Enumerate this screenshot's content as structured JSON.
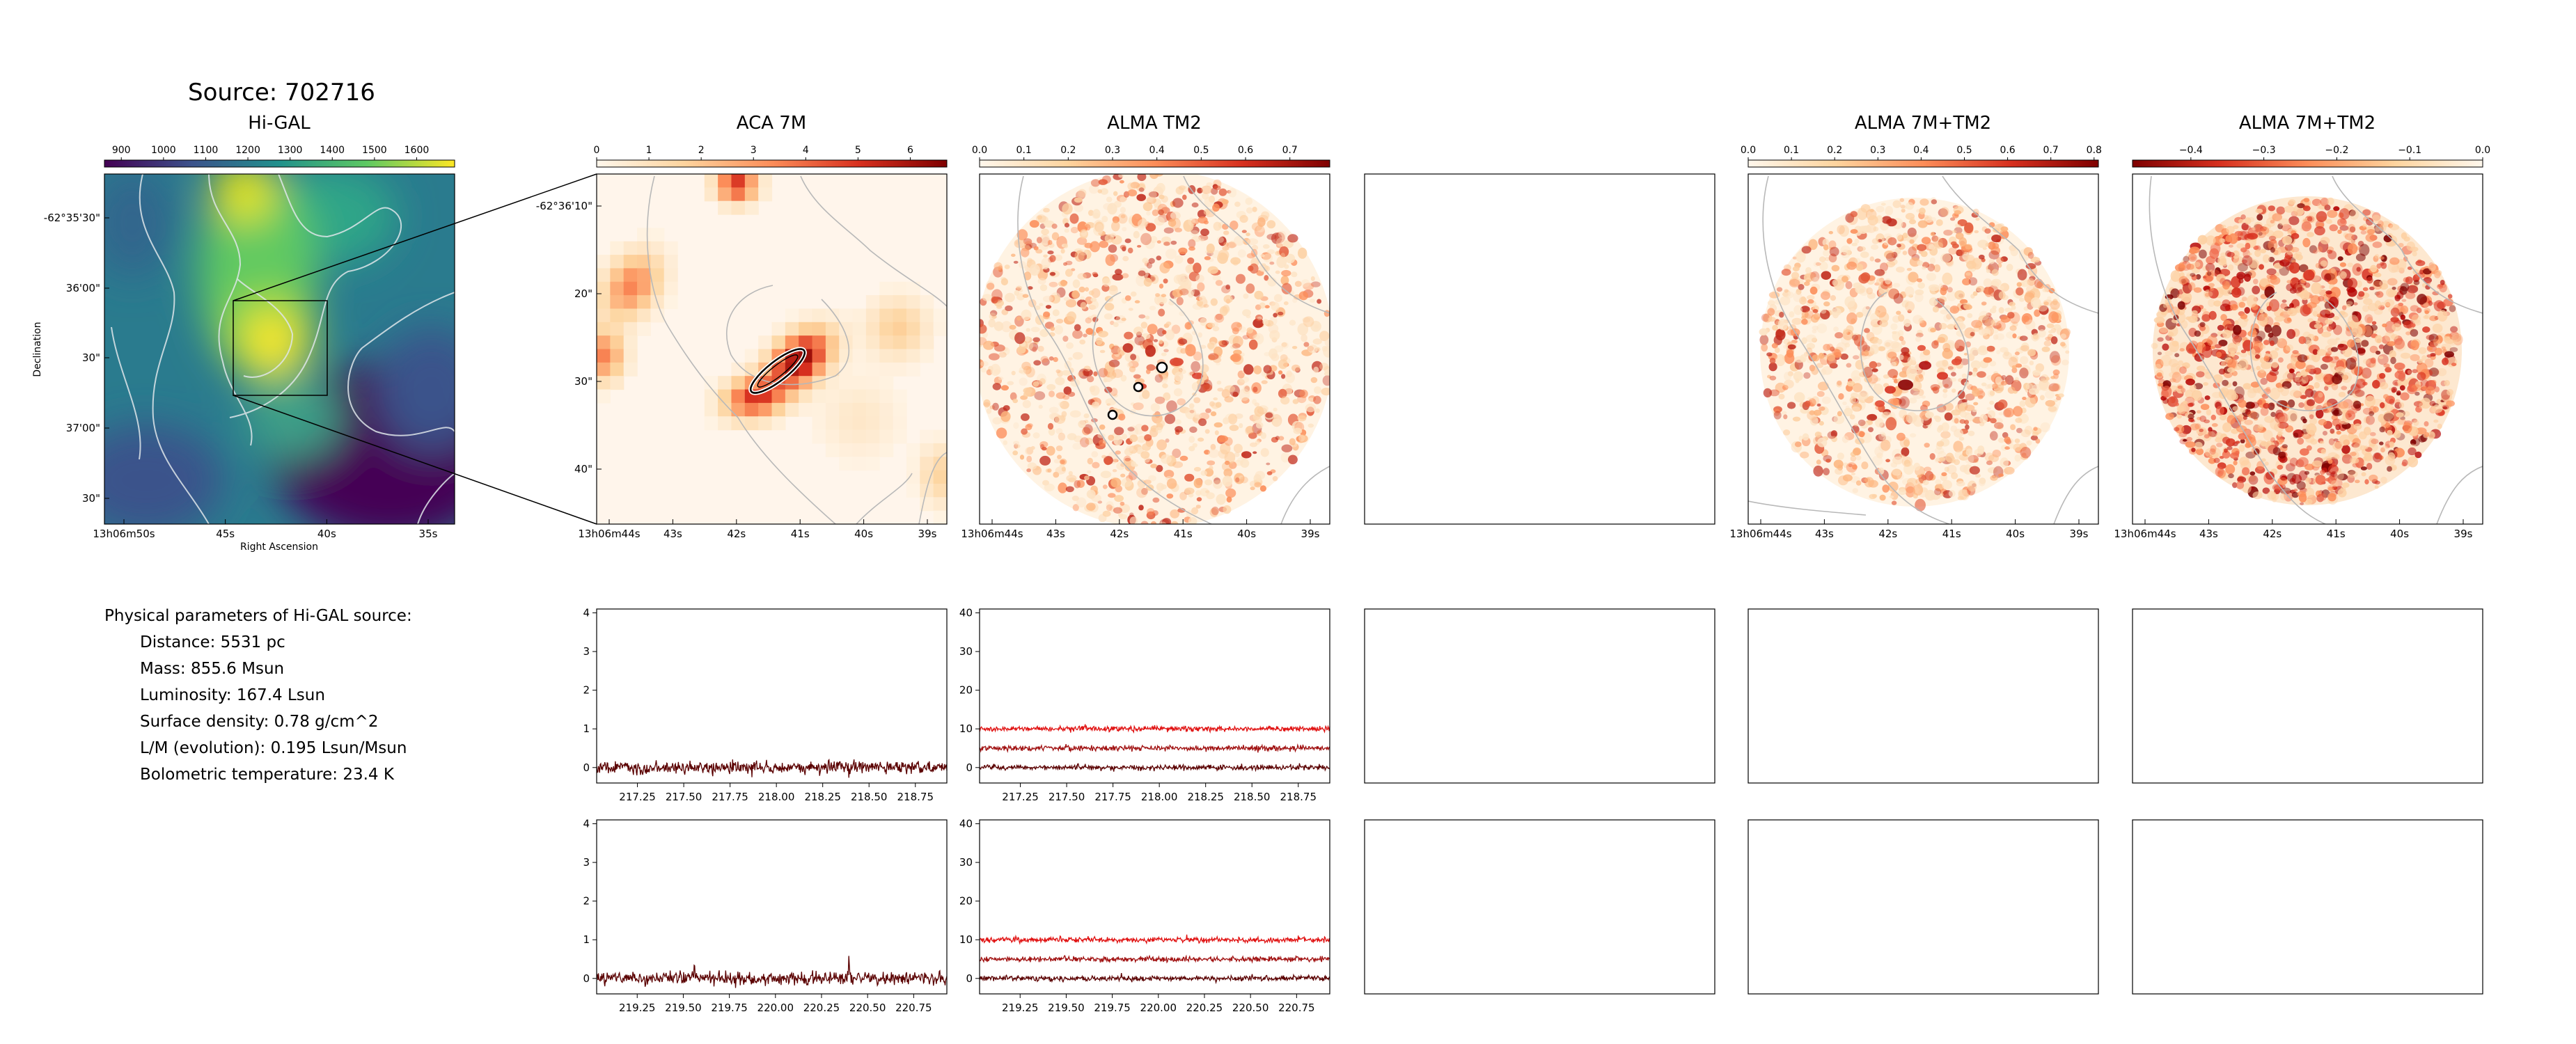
{
  "source_title": "Source: 702716",
  "params": {
    "title": "Physical parameters of Hi-GAL source:",
    "lines": [
      "Distance: 5531 pc",
      "Mass: 855.6 Msun",
      "Luminosity: 167.4 Lsun",
      "Surface density: 0.78 g/cm^2",
      "L/M (evolution): 0.195 Lsun/Msun",
      "Bolometric temperature: 23.4 K"
    ]
  },
  "colors": {
    "viridis": [
      "#440154",
      "#3b528b",
      "#21918c",
      "#5ec962",
      "#fde725"
    ],
    "orrd": [
      "#fff7ec",
      "#fdd49e",
      "#fc8d59",
      "#d7301f",
      "#7f0000"
    ],
    "orrd_rev": [
      "#7f0000",
      "#d7301f",
      "#fc8d59",
      "#fdd49e",
      "#fff7ec"
    ],
    "spec_dark": "#5a0000",
    "spec_mid": "#a01010",
    "spec_light": "#e01010"
  },
  "chart_data": [
    {
      "type": "heatmap",
      "title": "Hi-GAL",
      "colorbar": {
        "ticks": [
          "900",
          "1000",
          "1100",
          "1200",
          "1300",
          "1400",
          "1500",
          "1600"
        ],
        "range": [
          860,
          1690
        ],
        "cmap": "viridis"
      },
      "ylabel": "Declination",
      "xlabel": "Right Ascension",
      "xticks": [
        "13h06m50s",
        "45s",
        "40s",
        "35s"
      ],
      "yticks": [
        "-62°35'30\"",
        "36'00\"",
        "30\"",
        "37'00\"",
        "30\""
      ],
      "zoom_box": true
    },
    {
      "type": "heatmap",
      "title": "ACA 7M",
      "colorbar": {
        "ticks": [
          "0",
          "1",
          "2",
          "3",
          "4",
          "5",
          "6"
        ],
        "range": [
          0,
          6.7
        ],
        "cmap": "orrd"
      },
      "xticks": [
        "13h06m44s",
        "43s",
        "42s",
        "41s",
        "40s",
        "39s"
      ],
      "yticks": [
        "-62°36'10\"",
        "20\"",
        "30\"",
        "40\""
      ]
    },
    {
      "type": "heatmap",
      "title": "ALMA TM2",
      "colorbar": {
        "ticks": [
          "0.0",
          "0.1",
          "0.2",
          "0.3",
          "0.4",
          "0.5",
          "0.6",
          "0.7"
        ],
        "range": [
          0,
          0.79
        ],
        "cmap": "orrd"
      },
      "xticks": [
        "13h06m44s",
        "43s",
        "42s",
        "41s",
        "40s",
        "39s"
      ]
    },
    {
      "type": "heatmap",
      "title": "ALMA 7M+TM2",
      "colorbar": {
        "ticks": [
          "0.0",
          "0.1",
          "0.2",
          "0.3",
          "0.4",
          "0.5",
          "0.6",
          "0.7",
          "0.8"
        ],
        "range": [
          0,
          0.81
        ],
        "cmap": "orrd"
      },
      "xticks": [
        "13h06m44s",
        "43s",
        "42s",
        "41s",
        "40s",
        "39s"
      ]
    },
    {
      "type": "heatmap",
      "title": "ALMA 7M+TM2",
      "colorbar": {
        "ticks": [
          "−0.4",
          "−0.3",
          "−0.2",
          "−0.1",
          "0.0"
        ],
        "range": [
          -0.48,
          0.0
        ],
        "cmap": "orrd_rev"
      },
      "xticks": [
        "13h06m44s",
        "43s",
        "42s",
        "41s",
        "40s",
        "39s"
      ]
    },
    {
      "type": "line",
      "name": "spec-aca-1",
      "x_ticks": [
        "217.25",
        "217.50",
        "217.75",
        "218.00",
        "218.25",
        "218.50",
        "218.75"
      ],
      "x_tick_values": [
        217.25,
        217.5,
        217.75,
        218.0,
        218.25,
        218.5,
        218.75
      ],
      "xlim": [
        217.03,
        218.92
      ],
      "y_ticks": [
        "0",
        "1",
        "2",
        "3",
        "4"
      ],
      "y_tick_values": [
        0,
        1,
        2,
        3,
        4
      ],
      "ylim": [
        -0.4,
        4.1
      ],
      "series": [
        {
          "offset": 0,
          "noise": 0.08,
          "color": "dark"
        }
      ]
    },
    {
      "type": "line",
      "name": "spec-tm2-1",
      "x_ticks": [
        "217.25",
        "217.50",
        "217.75",
        "218.00",
        "218.25",
        "218.50",
        "218.75"
      ],
      "x_tick_values": [
        217.25,
        217.5,
        217.75,
        218.0,
        218.25,
        218.5,
        218.75
      ],
      "xlim": [
        217.03,
        218.92
      ],
      "y_ticks": [
        "0",
        "10",
        "20",
        "30",
        "40"
      ],
      "y_tick_values": [
        0,
        10,
        20,
        30,
        40
      ],
      "ylim": [
        -4,
        41
      ],
      "series": [
        {
          "offset": 0,
          "noise": 0.35,
          "color": "dark"
        },
        {
          "offset": 5,
          "noise": 0.35,
          "color": "mid"
        },
        {
          "offset": 10,
          "noise": 0.35,
          "color": "light"
        }
      ]
    },
    {
      "type": "line",
      "name": "spec-aca-2",
      "x_ticks": [
        "219.25",
        "219.50",
        "219.75",
        "220.00",
        "220.25",
        "220.50",
        "220.75"
      ],
      "x_tick_values": [
        219.25,
        219.5,
        219.75,
        220.0,
        220.25,
        220.5,
        220.75
      ],
      "xlim": [
        219.03,
        220.93
      ],
      "y_ticks": [
        "0",
        "1",
        "2",
        "3",
        "4"
      ],
      "y_tick_values": [
        0,
        1,
        2,
        3,
        4
      ],
      "ylim": [
        -0.4,
        4.1
      ],
      "series": [
        {
          "offset": 0,
          "noise": 0.08,
          "color": "dark",
          "peaks": [
            [
              219.56,
              0.45
            ],
            [
              220.4,
              0.5
            ]
          ]
        }
      ]
    },
    {
      "type": "line",
      "name": "spec-tm2-2",
      "x_ticks": [
        "219.25",
        "219.50",
        "219.75",
        "220.00",
        "220.25",
        "220.50",
        "220.75"
      ],
      "x_tick_values": [
        219.25,
        219.5,
        219.75,
        220.0,
        220.25,
        220.5,
        220.75
      ],
      "xlim": [
        219.03,
        220.93
      ],
      "y_ticks": [
        "0",
        "10",
        "20",
        "30",
        "40"
      ],
      "y_tick_values": [
        0,
        10,
        20,
        30,
        40
      ],
      "ylim": [
        -4,
        41
      ],
      "series": [
        {
          "offset": 0,
          "noise": 0.35,
          "color": "dark"
        },
        {
          "offset": 5,
          "noise": 0.35,
          "color": "mid"
        },
        {
          "offset": 10,
          "noise": 0.35,
          "color": "light"
        }
      ]
    }
  ]
}
